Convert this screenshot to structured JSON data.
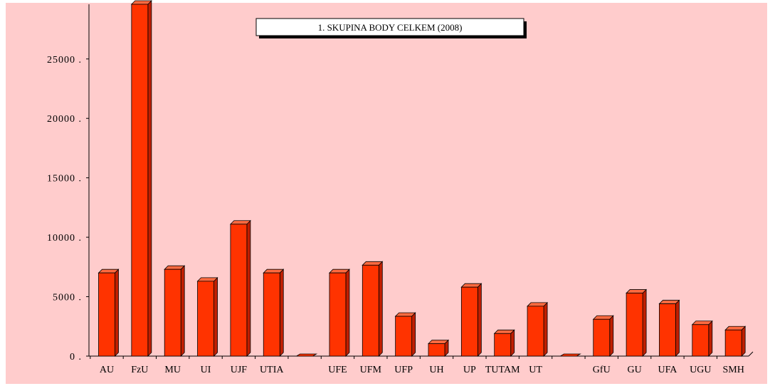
{
  "chart_data": {
    "type": "bar",
    "title": "1. SKUPINA BODY CELKEM (2008)",
    "xlabel": "",
    "ylabel": "",
    "ylim": [
      0,
      29600
    ],
    "yticks": [
      0,
      5000,
      10000,
      15000,
      20000,
      25000
    ],
    "ytick_labels": [
      "0 .",
      "5000 .",
      "10000 .",
      "15000 .",
      "20000 .",
      "25000 ."
    ],
    "grid": false,
    "legend": "none",
    "categories": [
      "AU",
      "FzU",
      "MU",
      "UI",
      "UJF",
      "UTIA",
      "",
      "UFE",
      "UFM",
      "UFP",
      "UH",
      "UP",
      "TUTAM",
      "UT",
      "",
      "GfU",
      "GU",
      "UFA",
      "UGU",
      "SMH"
    ],
    "tick_labels": [
      "AU",
      "FzU",
      "MU",
      "UI",
      "UJF",
      "UTIA",
      "",
      "UFE",
      "UFM",
      "UFP",
      "UH",
      "UP",
      "TUTAM",
      "UT",
      "",
      "GfU",
      "GU",
      "UFA",
      "UGU",
      "SMH"
    ],
    "values": [
      7000,
      29600,
      7300,
      6300,
      11100,
      7000,
      0,
      7000,
      7650,
      3350,
      1050,
      5800,
      1900,
      4200,
      0,
      3100,
      5300,
      4400,
      2650,
      2200
    ],
    "colors": {
      "plot_background": "#ffcccc",
      "bar_front": "#ff3300",
      "bar_side": "#c01f00",
      "bar_top": "#ff6a40",
      "outline": "#000000"
    }
  }
}
